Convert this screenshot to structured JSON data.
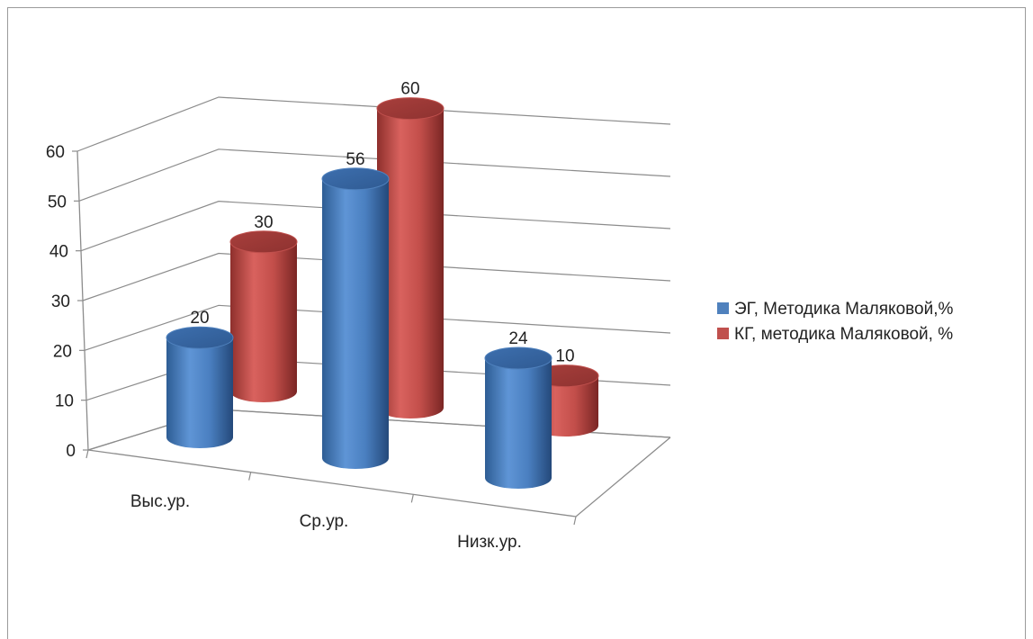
{
  "chart_data": {
    "type": "bar",
    "categories": [
      "Выс.ур.",
      "Ср.ур.",
      "Низк.ур."
    ],
    "series": [
      {
        "name": "ЭГ, Методика Маляковой,%",
        "values": [
          20,
          56,
          24
        ],
        "color": "#4f81bd"
      },
      {
        "name": "КГ, методика Маляковой, %",
        "values": [
          30,
          60,
          10
        ],
        "color": "#c0504d"
      }
    ],
    "yticks": [
      0,
      10,
      20,
      30,
      40,
      50,
      60
    ],
    "ylim": [
      0,
      60
    ],
    "grid": true,
    "legend": "right"
  }
}
